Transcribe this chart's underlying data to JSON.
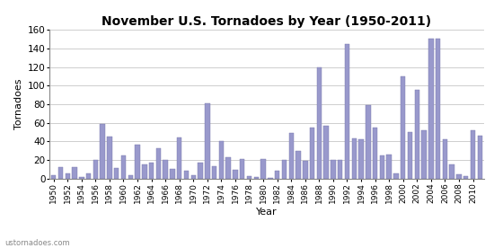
{
  "title": "November U.S. Tornadoes by Year (1950-2011)",
  "xlabel": "Year",
  "ylabel": "Tornadoes",
  "watermark": "ustornadoes.com",
  "bar_color": "#9999cc",
  "bar_edge_color": "#7777aa",
  "background_color": "#ffffff",
  "ylim": [
    0,
    160
  ],
  "yticks": [
    0,
    20,
    40,
    60,
    80,
    100,
    120,
    140,
    160
  ],
  "years": [
    1950,
    1951,
    1952,
    1953,
    1954,
    1955,
    1956,
    1957,
    1958,
    1959,
    1960,
    1961,
    1962,
    1963,
    1964,
    1965,
    1966,
    1967,
    1968,
    1969,
    1970,
    1971,
    1972,
    1973,
    1974,
    1975,
    1976,
    1977,
    1978,
    1979,
    1980,
    1981,
    1982,
    1983,
    1984,
    1985,
    1986,
    1987,
    1988,
    1989,
    1990,
    1991,
    1992,
    1993,
    1994,
    1995,
    1996,
    1997,
    1998,
    1999,
    2000,
    2001,
    2002,
    2003,
    2004,
    2005,
    2006,
    2007,
    2008,
    2009,
    2010,
    2011
  ],
  "values": [
    4,
    12,
    6,
    12,
    2,
    6,
    20,
    59,
    45,
    11,
    25,
    4,
    36,
    15,
    17,
    33,
    20,
    10,
    44,
    8,
    4,
    17,
    81,
    13,
    40,
    23,
    9,
    21,
    3,
    2,
    21,
    1,
    8,
    20,
    49,
    30,
    19,
    55,
    120,
    57,
    20,
    20,
    145,
    43,
    42,
    79,
    55,
    25,
    26,
    6,
    110,
    50,
    95,
    52,
    150,
    150,
    42,
    15,
    5,
    3,
    52,
    46
  ]
}
